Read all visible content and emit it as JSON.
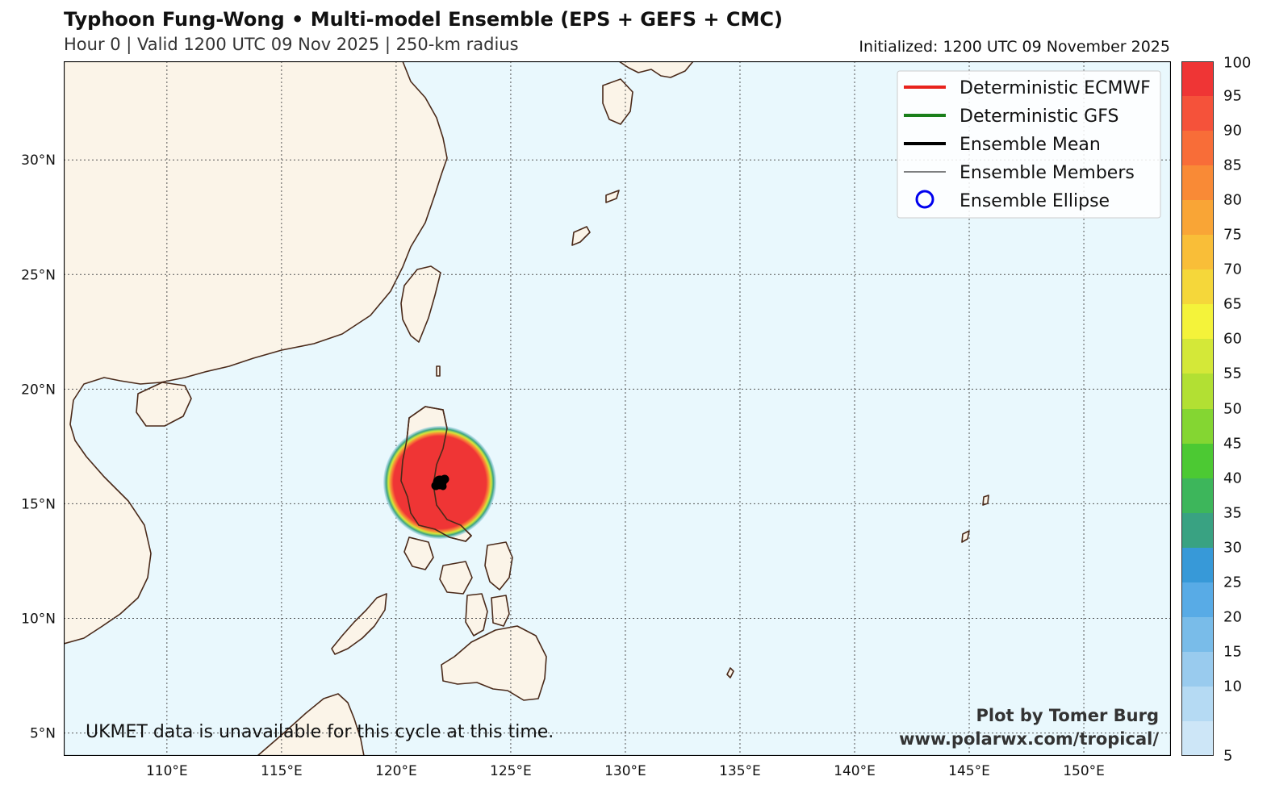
{
  "header": {
    "title": "Typhoon Fung-Wong • Multi-model Ensemble (EPS + GEFS + CMC)",
    "subtitle": "Hour 0 | Valid 1200 UTC 09 Nov 2025 | 250-km radius",
    "initialized": "Initialized: 1200 UTC 09 November 2025"
  },
  "map": {
    "lon_range": [
      105.5,
      153.8
    ],
    "lat_range": [
      4.0,
      34.3
    ],
    "lon_ticks": [
      "110°E",
      "115°E",
      "120°E",
      "125°E",
      "130°E",
      "135°E",
      "140°E",
      "145°E",
      "150°E"
    ],
    "lat_ticks": [
      "5°N",
      "10°N",
      "15°N",
      "20°N",
      "25°N",
      "30°N"
    ],
    "ocean_color": "#e9f8fd",
    "land_color": "#fbf4e8",
    "coast_color": "#4a2a1a",
    "storm_center": {
      "lon": 122.0,
      "lat": 15.8
    },
    "notice": "UKMET data is unavailable for this cycle at this time.",
    "credit_line1": "Plot by Tomer Burg",
    "credit_line2": "www.polarwx.com/tropical/"
  },
  "legend": {
    "items": [
      {
        "label": "Deterministic ECMWF",
        "color": "#e8231d",
        "style": "thick-line"
      },
      {
        "label": "Deterministic GFS",
        "color": "#1a7f1a",
        "style": "thick-line"
      },
      {
        "label": "Ensemble Mean",
        "color": "#000000",
        "style": "thick-line"
      },
      {
        "label": "Ensemble Members",
        "color": "#000000",
        "style": "thin-line"
      },
      {
        "label": "Ensemble Ellipse",
        "color": "#0000ee",
        "style": "circle"
      }
    ]
  },
  "colorbar": {
    "labels": [
      "100",
      "95",
      "90",
      "85",
      "80",
      "75",
      "70",
      "65",
      "60",
      "55",
      "50",
      "45",
      "40",
      "35",
      "30",
      "25",
      "20",
      "15",
      "10",
      "5"
    ],
    "colors": [
      "#ef3535",
      "#f5523a",
      "#f86d38",
      "#f98a36",
      "#f9a536",
      "#f9be38",
      "#f5d73a",
      "#f4f33a",
      "#d4e838",
      "#b2e033",
      "#84d632",
      "#4cc933",
      "#3db65b",
      "#39a282",
      "#3799d8",
      "#58abe6",
      "#79bce9",
      "#99cbee",
      "#b5daf3",
      "#cde6f7"
    ]
  }
}
